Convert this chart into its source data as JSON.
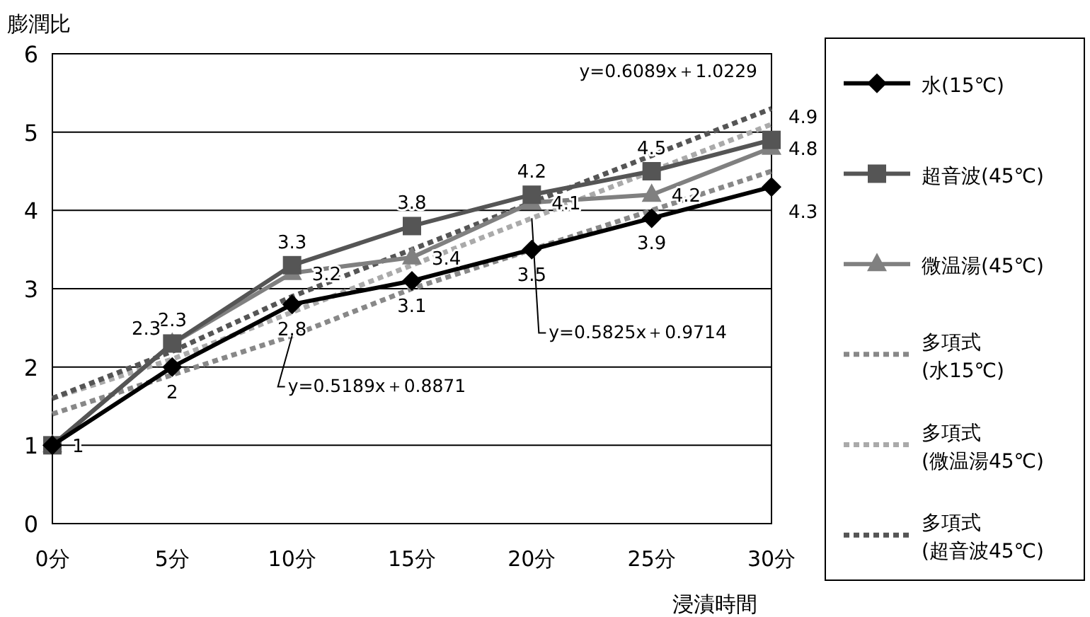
{
  "chart_data": {
    "type": "line",
    "xlabel": "浸漬時間",
    "ylabel": "膨潤比",
    "categories": [
      "0分",
      "5分",
      "10分",
      "15分",
      "20分",
      "25分",
      "30分"
    ],
    "ylim": [
      0,
      6
    ],
    "yticks": [
      0,
      1,
      2,
      3,
      4,
      5,
      6
    ],
    "grid": "y",
    "legend": "right",
    "series": [
      {
        "name": "水(15℃)",
        "color": "#000000",
        "marker": "diamond",
        "line_style": "solid",
        "values": [
          1,
          2,
          2.8,
          3.1,
          3.5,
          3.9,
          4.3
        ],
        "value_labels": [
          null,
          "2",
          "2.8",
          "3.1",
          "3.5",
          "3.9",
          "4.3"
        ]
      },
      {
        "name": "超音波(45℃)",
        "color": "#555555",
        "marker": "square",
        "line_style": "solid",
        "values": [
          1,
          2.3,
          3.3,
          3.8,
          4.2,
          4.5,
          4.9
        ],
        "value_labels": [
          null,
          "2.3",
          "3.3",
          "3.8",
          "4.2",
          "4.5",
          "4.9"
        ]
      },
      {
        "name": "微温湯(45℃)",
        "color": "#808080",
        "marker": "triangle",
        "line_style": "solid",
        "values": [
          1,
          2.3,
          3.2,
          3.4,
          4.1,
          4.2,
          4.8
        ],
        "value_labels": [
          "1",
          "2.3",
          "3.2",
          "3.4",
          "4.1",
          "4.2",
          "4.8"
        ]
      },
      {
        "name": "多項式\n(水15℃)",
        "color": "#888888",
        "marker": "none",
        "line_style": "dotted",
        "values": [
          1.4,
          1.9,
          2.4,
          3.0,
          3.5,
          4.0,
          4.5
        ]
      },
      {
        "name": "多項式\n(微温湯45℃)",
        "color": "#aaaaaa",
        "marker": "none",
        "line_style": "dotted",
        "values": [
          1.6,
          2.1,
          2.7,
          3.3,
          3.9,
          4.5,
          5.1
        ]
      },
      {
        "name": "多項式\n(超音波45℃)",
        "color": "#555555",
        "marker": "none",
        "line_style": "dotted",
        "values": [
          1.6,
          2.2,
          2.9,
          3.5,
          4.1,
          4.7,
          5.3
        ]
      }
    ],
    "annotations": [
      {
        "text": "y=0.5189x＋0.8871",
        "x": "10分",
        "y": 2.4
      },
      {
        "text": "y=0.5825x＋0.9714",
        "x": "20分",
        "y": 3.9
      },
      {
        "text": "y=0.6089x＋1.0229",
        "x": "30分",
        "y": 5.3
      }
    ]
  }
}
